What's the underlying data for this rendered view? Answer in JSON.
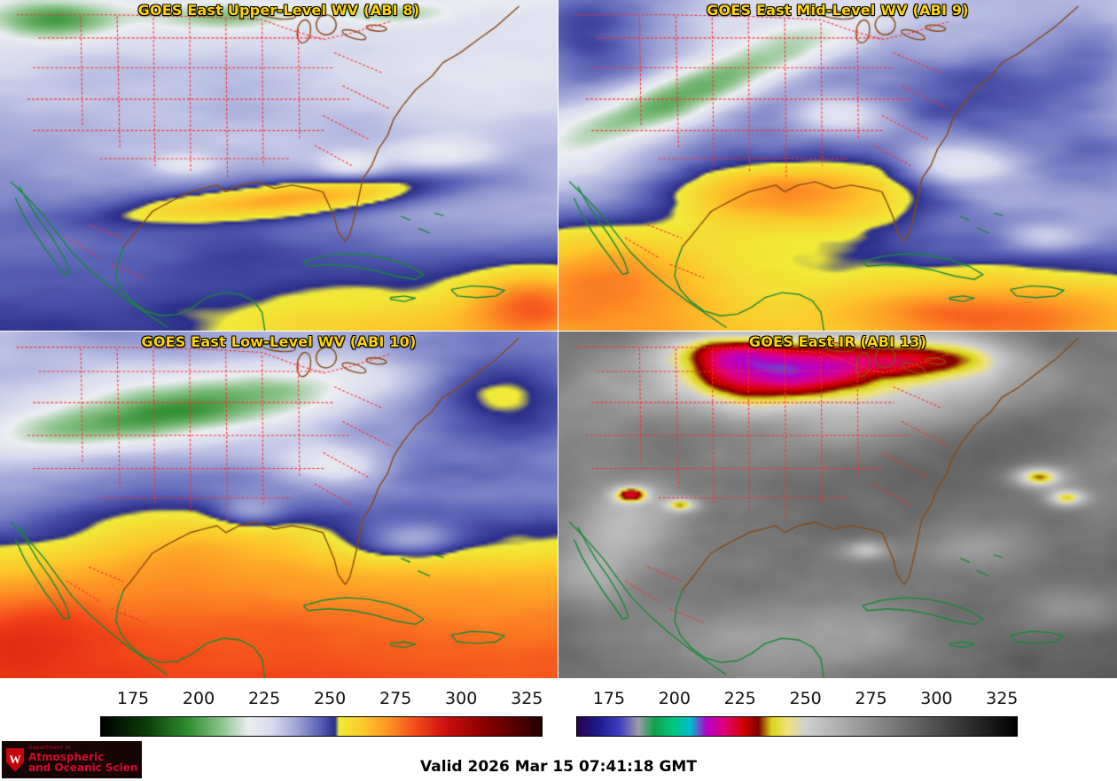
{
  "panels": [
    {
      "id": "abi8",
      "title": "GOES East Upper-Level WV (ABI 8)"
    },
    {
      "id": "abi9",
      "title": "GOES East Mid-Level WV (ABI 9)"
    },
    {
      "id": "abi10",
      "title": "GOES East Low-Level WV (ABI 10)"
    },
    {
      "id": "abi13",
      "title": "GOES East IR (ABI 13)"
    }
  ],
  "colorbars": [
    {
      "id": "wv",
      "ticks": [
        "175",
        "200",
        "225",
        "250",
        "275",
        "300",
        "325"
      ],
      "range": [
        162.5,
        331
      ],
      "stops": [
        {
          "t": 162.5,
          "color": "#000000"
        },
        {
          "t": 180,
          "color": "#0b3d0b"
        },
        {
          "t": 196,
          "color": "#2f8f2f"
        },
        {
          "t": 209,
          "color": "#8fc48f"
        },
        {
          "t": 219,
          "color": "#eceef2"
        },
        {
          "t": 228,
          "color": "#d8daee"
        },
        {
          "t": 238,
          "color": "#9aa0d4"
        },
        {
          "t": 246,
          "color": "#5b63b7"
        },
        {
          "t": 252,
          "color": "#2b2f8a"
        },
        {
          "t": 253.5,
          "color": "#f0ea38"
        },
        {
          "t": 263,
          "color": "#fcc82a"
        },
        {
          "t": 273,
          "color": "#fd8f25"
        },
        {
          "t": 283,
          "color": "#f4491a"
        },
        {
          "t": 294,
          "color": "#ce1010"
        },
        {
          "t": 308,
          "color": "#8f0000"
        },
        {
          "t": 320,
          "color": "#5a0000"
        },
        {
          "t": 331,
          "color": "#230000"
        }
      ]
    },
    {
      "id": "ir",
      "ticks": [
        "175",
        "200",
        "225",
        "250",
        "275",
        "300",
        "325"
      ],
      "range": [
        162.5,
        331
      ],
      "stops": [
        {
          "t": 162.5,
          "color": "#2a004e"
        },
        {
          "t": 171,
          "color": "#1c1c8f"
        },
        {
          "t": 179,
          "color": "#4040c0"
        },
        {
          "t": 186,
          "color": "#9c9cac"
        },
        {
          "t": 192,
          "color": "#11a04b"
        },
        {
          "t": 199,
          "color": "#00c878"
        },
        {
          "t": 206,
          "color": "#00bcd0"
        },
        {
          "t": 212,
          "color": "#b400c8"
        },
        {
          "t": 219,
          "color": "#e00078"
        },
        {
          "t": 226,
          "color": "#d40000"
        },
        {
          "t": 232,
          "color": "#7d0000"
        },
        {
          "t": 237,
          "color": "#d9d516"
        },
        {
          "t": 243,
          "color": "#eee27a"
        },
        {
          "t": 250,
          "color": "#cfcfcf"
        },
        {
          "t": 331,
          "color": "#000000"
        }
      ]
    }
  ],
  "footer": {
    "valid_time": "Valid 2026 Mar 15 07:41:18 GMT"
  },
  "logo": {
    "crest_letter": "W",
    "department": "Department of",
    "line1": "Atmospheric",
    "line2": "and Oceanic Sciences"
  },
  "colors": {
    "title_text": "#ffd400",
    "map_state_borders": "#ff2d2d",
    "map_coast_us": "#8a4a14",
    "map_coast_intl": "#168a38",
    "logo_background": "#150505",
    "logo_text": "#cf0a2c"
  }
}
